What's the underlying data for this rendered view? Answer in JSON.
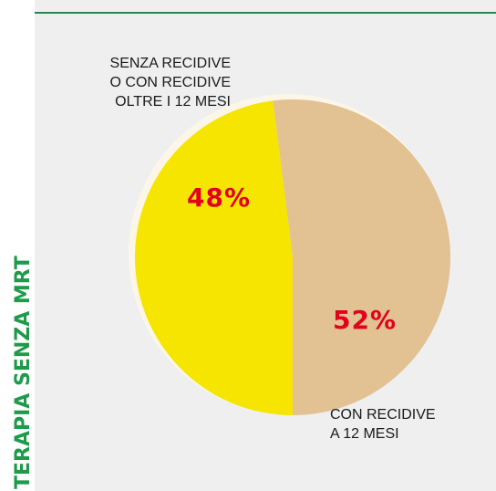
{
  "chart_data": {
    "type": "pie",
    "side_title": "TERAPIA SENZA MRT",
    "categories": [
      [
        "CON RECIDIVE",
        "A 12 MESI"
      ],
      [
        "SENZA RECIDIVE",
        "O CON RECIDIVE",
        "OLTRE I 12 MESI"
      ]
    ],
    "values": [
      52,
      48
    ],
    "value_labels": [
      "52%",
      "48%"
    ],
    "colors": [
      "#e2c193",
      "#f5e500"
    ]
  }
}
